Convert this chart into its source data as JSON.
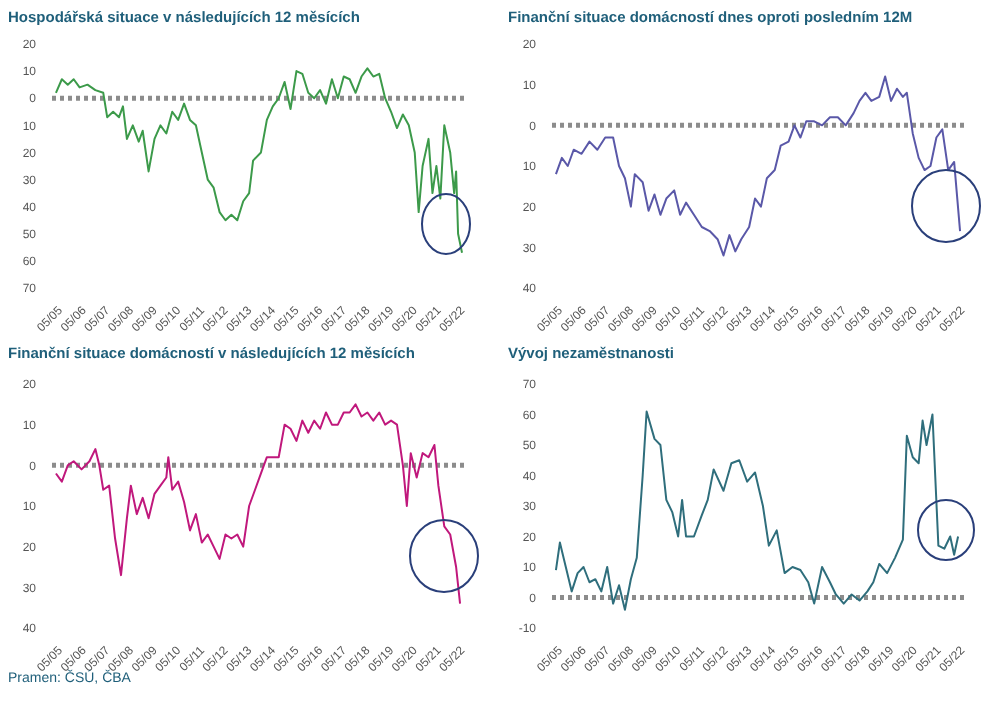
{
  "chart_data": [
    {
      "type": "line",
      "title": "Hospodářská situace v následujících 12 měsících",
      "color": "#3c9a4a",
      "grid": false,
      "legend": false,
      "marker": "none",
      "line_style": "solid",
      "x": [
        "2005-05",
        "2005-08",
        "2005-11",
        "2006-02",
        "2006-05",
        "2006-09",
        "2007-01",
        "2007-05",
        "2007-07",
        "2007-10",
        "2008-01",
        "2008-03",
        "2008-05",
        "2008-08",
        "2008-11",
        "2009-01",
        "2009-04",
        "2009-07",
        "2009-10",
        "2010-01",
        "2010-04",
        "2010-07",
        "2010-10",
        "2011-01",
        "2011-04",
        "2011-07",
        "2011-10",
        "2012-01",
        "2012-04",
        "2012-07",
        "2012-10",
        "2013-01",
        "2013-04",
        "2013-07",
        "2013-09",
        "2014-01",
        "2014-04",
        "2014-07",
        "2014-10",
        "2015-01",
        "2015-04",
        "2015-07",
        "2015-10",
        "2016-01",
        "2016-04",
        "2016-07",
        "2016-10",
        "2017-01",
        "2017-04",
        "2017-07",
        "2017-10",
        "2018-01",
        "2018-04",
        "2018-07",
        "2018-10",
        "2019-01",
        "2019-04",
        "2019-07",
        "2019-10",
        "2020-01",
        "2020-04",
        "2020-07",
        "2020-09",
        "2020-11",
        "2021-02",
        "2021-04",
        "2021-06",
        "2021-08",
        "2021-10",
        "2022-01",
        "2022-03",
        "2022-04",
        "2022-05",
        "2022-07"
      ],
      "values": [
        2,
        7,
        5,
        7,
        4,
        5,
        3,
        2,
        -7,
        -5,
        -7,
        -3,
        -15,
        -10,
        -16,
        -12,
        -27,
        -15,
        -10,
        -13,
        -5,
        -8,
        -2,
        -8,
        -10,
        -20,
        -30,
        -33,
        -42,
        -45,
        -43,
        -45,
        -38,
        -35,
        -23,
        -20,
        -8,
        -3,
        0,
        6,
        -4,
        10,
        9,
        2,
        0,
        3,
        -2,
        7,
        0,
        8,
        7,
        2,
        8,
        11,
        8,
        9,
        0,
        -5,
        -11,
        -6,
        -10,
        -20,
        -42,
        -25,
        -15,
        -35,
        -25,
        -37,
        -10,
        -20,
        -35,
        -27,
        -50,
        -57
      ],
      "xlim": [
        "2005-03",
        "2022-08"
      ],
      "xticks": [
        {
          "value": "2005-05",
          "label": "05/05"
        },
        {
          "value": "2006-05",
          "label": "05/06"
        },
        {
          "value": "2007-05",
          "label": "05/07"
        },
        {
          "value": "2008-05",
          "label": "05/08"
        },
        {
          "value": "2009-05",
          "label": "05/09"
        },
        {
          "value": "2010-05",
          "label": "05/10"
        },
        {
          "value": "2011-05",
          "label": "05/11"
        },
        {
          "value": "2012-05",
          "label": "05/12"
        },
        {
          "value": "2013-05",
          "label": "05/13"
        },
        {
          "value": "2014-05",
          "label": "05/14"
        },
        {
          "value": "2015-05",
          "label": "05/15"
        },
        {
          "value": "2016-05",
          "label": "05/16"
        },
        {
          "value": "2017-05",
          "label": "05/17"
        },
        {
          "value": "2018-05",
          "label": "05/18"
        },
        {
          "value": "2019-05",
          "label": "05/19"
        },
        {
          "value": "2020-05",
          "label": "05/20"
        },
        {
          "value": "2021-05",
          "label": "05/21"
        },
        {
          "value": "2022-05",
          "label": "05/22"
        }
      ],
      "ylim": [
        -70,
        20
      ],
      "yticks": [
        {
          "value": -70,
          "label": "70"
        },
        {
          "value": -60,
          "label": "60"
        },
        {
          "value": -50,
          "label": "50"
        },
        {
          "value": -40,
          "label": "40"
        },
        {
          "value": -30,
          "label": "30"
        },
        {
          "value": -20,
          "label": "20"
        },
        {
          "value": -10,
          "label": "10"
        },
        0,
        10,
        20
      ],
      "ref_lines": [
        {
          "axis": "y",
          "value": 0,
          "color": "#8c8c8c",
          "line_style": "dotted"
        }
      ]
    },
    {
      "type": "line",
      "title": "Finanční situace domácností dnes oproti posledním 12M",
      "color": "#5a58a8",
      "grid": false,
      "legend": false,
      "marker": "none",
      "line_style": "solid",
      "x": [
        "2005-05",
        "2005-08",
        "2005-11",
        "2006-02",
        "2006-06",
        "2006-10",
        "2007-02",
        "2007-06",
        "2007-10",
        "2008-01",
        "2008-04",
        "2008-07",
        "2008-09",
        "2009-01",
        "2009-04",
        "2009-07",
        "2009-10",
        "2010-01",
        "2010-05",
        "2010-08",
        "2010-11",
        "2011-03",
        "2011-07",
        "2011-11",
        "2012-03",
        "2012-06",
        "2012-09",
        "2012-12",
        "2013-03",
        "2013-07",
        "2013-10",
        "2014-01",
        "2014-04",
        "2014-08",
        "2014-11",
        "2015-03",
        "2015-06",
        "2015-09",
        "2015-12",
        "2016-04",
        "2016-08",
        "2016-12",
        "2017-04",
        "2017-08",
        "2017-12",
        "2018-03",
        "2018-06",
        "2018-09",
        "2019-01",
        "2019-04",
        "2019-07",
        "2019-10",
        "2020-01",
        "2020-03",
        "2020-06",
        "2020-09",
        "2020-12",
        "2021-03",
        "2021-06",
        "2021-09",
        "2021-12",
        "2022-03",
        "2022-06"
      ],
      "values": [
        -12,
        -8,
        -10,
        -6,
        -7,
        -4,
        -6,
        -3,
        -3,
        -10,
        -13,
        -20,
        -12,
        -14,
        -21,
        -17,
        -22,
        -18,
        -16,
        -22,
        -19,
        -22,
        -25,
        -26,
        -28,
        -32,
        -27,
        -31,
        -28,
        -25,
        -18,
        -20,
        -13,
        -11,
        -5,
        -4,
        0,
        -3,
        1,
        1,
        0,
        2,
        2,
        0,
        3,
        6,
        8,
        6,
        7,
        12,
        6,
        9,
        7,
        8,
        -2,
        -8,
        -11,
        -10,
        -3,
        -1,
        -11,
        -9,
        -26
      ],
      "xlim": [
        "2005-03",
        "2022-08"
      ],
      "xticks": [
        {
          "value": "2005-05",
          "label": "05/05"
        },
        {
          "value": "2006-05",
          "label": "05/06"
        },
        {
          "value": "2007-05",
          "label": "05/07"
        },
        {
          "value": "2008-05",
          "label": "05/08"
        },
        {
          "value": "2009-05",
          "label": "05/09"
        },
        {
          "value": "2010-05",
          "label": "05/10"
        },
        {
          "value": "2011-05",
          "label": "05/11"
        },
        {
          "value": "2012-05",
          "label": "05/12"
        },
        {
          "value": "2013-05",
          "label": "05/13"
        },
        {
          "value": "2014-05",
          "label": "05/14"
        },
        {
          "value": "2015-05",
          "label": "05/15"
        },
        {
          "value": "2016-05",
          "label": "05/16"
        },
        {
          "value": "2017-05",
          "label": "05/17"
        },
        {
          "value": "2018-05",
          "label": "05/18"
        },
        {
          "value": "2019-05",
          "label": "05/19"
        },
        {
          "value": "2020-05",
          "label": "05/20"
        },
        {
          "value": "2021-05",
          "label": "05/21"
        },
        {
          "value": "2022-05",
          "label": "05/22"
        }
      ],
      "ylim": [
        -40,
        20
      ],
      "yticks": [
        {
          "value": -40,
          "label": "40"
        },
        {
          "value": -30,
          "label": "30"
        },
        {
          "value": -20,
          "label": "20"
        },
        {
          "value": -10,
          "label": "10"
        },
        0,
        10,
        20
      ],
      "ref_lines": [
        {
          "axis": "y",
          "value": 0,
          "color": "#8c8c8c",
          "line_style": "dotted"
        }
      ]
    },
    {
      "type": "line",
      "title": "Finanční situace domácností v následujících 12 měsících",
      "color": "#c0187c",
      "grid": false,
      "legend": false,
      "marker": "none",
      "line_style": "solid",
      "x": [
        "2005-05",
        "2005-08",
        "2005-11",
        "2006-02",
        "2006-06",
        "2006-10",
        "2007-01",
        "2007-03",
        "2007-05",
        "2007-08",
        "2007-11",
        "2008-02",
        "2008-05",
        "2008-07",
        "2008-10",
        "2009-01",
        "2009-04",
        "2009-07",
        "2009-10",
        "2010-01",
        "2010-02",
        "2010-04",
        "2010-07",
        "2010-10",
        "2011-01",
        "2011-04",
        "2011-07",
        "2011-10",
        "2012-01",
        "2012-04",
        "2012-07",
        "2012-10",
        "2013-01",
        "2013-04",
        "2013-07",
        "2013-10",
        "2014-01",
        "2014-04",
        "2014-07",
        "2014-10",
        "2015-01",
        "2015-04",
        "2015-07",
        "2015-10",
        "2016-01",
        "2016-04",
        "2016-07",
        "2016-10",
        "2017-01",
        "2017-04",
        "2017-07",
        "2017-10",
        "2018-01",
        "2018-04",
        "2018-07",
        "2018-10",
        "2019-01",
        "2019-04",
        "2019-07",
        "2019-10",
        "2020-01",
        "2020-03",
        "2020-05",
        "2020-08",
        "2020-11",
        "2021-02",
        "2021-05",
        "2021-07",
        "2021-10",
        "2022-01",
        "2022-04",
        "2022-06"
      ],
      "values": [
        -2,
        -4,
        0,
        1,
        -1,
        1,
        4,
        0,
        -6,
        -5,
        -18,
        -27,
        -13,
        -5,
        -12,
        -8,
        -13,
        -7,
        -5,
        -3,
        2,
        -6,
        -4,
        -9,
        -16,
        -12,
        -19,
        -17,
        -20,
        -23,
        -17,
        -18,
        -17,
        -20,
        -10,
        -6,
        -2,
        2,
        2,
        2,
        10,
        9,
        6,
        11,
        8,
        11,
        9,
        13,
        10,
        10,
        13,
        13,
        15,
        12,
        13,
        11,
        13,
        10,
        11,
        10,
        0,
        -10,
        3,
        -3,
        3,
        2,
        5,
        -5,
        -15,
        -17,
        -25,
        -34
      ],
      "xlim": [
        "2005-03",
        "2022-08"
      ],
      "xticks": [
        {
          "value": "2005-05",
          "label": "05/05"
        },
        {
          "value": "2006-05",
          "label": "05/06"
        },
        {
          "value": "2007-05",
          "label": "05/07"
        },
        {
          "value": "2008-05",
          "label": "05/08"
        },
        {
          "value": "2009-05",
          "label": "05/09"
        },
        {
          "value": "2010-05",
          "label": "05/10"
        },
        {
          "value": "2011-05",
          "label": "05/11"
        },
        {
          "value": "2012-05",
          "label": "05/12"
        },
        {
          "value": "2013-05",
          "label": "05/13"
        },
        {
          "value": "2014-05",
          "label": "05/14"
        },
        {
          "value": "2015-05",
          "label": "05/15"
        },
        {
          "value": "2016-05",
          "label": "05/16"
        },
        {
          "value": "2017-05",
          "label": "05/17"
        },
        {
          "value": "2018-05",
          "label": "05/18"
        },
        {
          "value": "2019-05",
          "label": "05/19"
        },
        {
          "value": "2020-05",
          "label": "05/20"
        },
        {
          "value": "2021-05",
          "label": "05/21"
        },
        {
          "value": "2022-05",
          "label": "05/22"
        }
      ],
      "ylim": [
        -40,
        20
      ],
      "yticks": [
        {
          "value": -40,
          "label": "40"
        },
        {
          "value": -30,
          "label": "30"
        },
        {
          "value": -20,
          "label": "20"
        },
        {
          "value": -10,
          "label": "10"
        },
        0,
        10,
        20
      ],
      "ref_lines": [
        {
          "axis": "y",
          "value": 0,
          "color": "#8c8c8c",
          "line_style": "dotted"
        }
      ],
      "annotations": [
        "Pramen: ČSÚ, ČBA"
      ]
    },
    {
      "type": "line",
      "title": "Vývoj nezaměstnanosti",
      "color": "#2f6e7c",
      "grid": false,
      "legend": false,
      "marker": "none",
      "line_style": "solid",
      "x": [
        "2005-05",
        "2005-07",
        "2005-10",
        "2006-01",
        "2006-04",
        "2006-07",
        "2006-10",
        "2007-01",
        "2007-04",
        "2007-07",
        "2007-10",
        "2008-01",
        "2008-04",
        "2008-07",
        "2008-10",
        "2009-01",
        "2009-03",
        "2009-07",
        "2009-10",
        "2010-01",
        "2010-04",
        "2010-07",
        "2010-09",
        "2010-11",
        "2011-03",
        "2011-07",
        "2011-10",
        "2012-01",
        "2012-06",
        "2012-10",
        "2013-02",
        "2013-06",
        "2013-10",
        "2014-02",
        "2014-05",
        "2014-09",
        "2015-01",
        "2015-05",
        "2015-09",
        "2016-01",
        "2016-04",
        "2016-08",
        "2016-12",
        "2017-03",
        "2017-07",
        "2017-11",
        "2018-03",
        "2018-07",
        "2018-10",
        "2019-01",
        "2019-05",
        "2019-09",
        "2020-01",
        "2020-03",
        "2020-06",
        "2020-09",
        "2020-11",
        "2021-01",
        "2021-04",
        "2021-07",
        "2021-10",
        "2022-01",
        "2022-03",
        "2022-05"
      ],
      "values": [
        9,
        18,
        10,
        2,
        8,
        10,
        5,
        6,
        2,
        10,
        -2,
        4,
        -4,
        6,
        13,
        40,
        61,
        52,
        50,
        32,
        28,
        20,
        32,
        20,
        20,
        27,
        32,
        42,
        35,
        44,
        45,
        38,
        41,
        30,
        17,
        22,
        8,
        10,
        9,
        5,
        -2,
        10,
        5,
        1,
        -2,
        1,
        -1,
        2,
        5,
        11,
        8,
        13,
        19,
        53,
        46,
        44,
        58,
        50,
        60,
        17,
        16,
        20,
        14,
        20
      ],
      "xlim": [
        "2005-03",
        "2022-08"
      ],
      "xticks": [
        {
          "value": "2005-05",
          "label": "05/05"
        },
        {
          "value": "2006-05",
          "label": "05/06"
        },
        {
          "value": "2007-05",
          "label": "05/07"
        },
        {
          "value": "2008-05",
          "label": "05/08"
        },
        {
          "value": "2009-05",
          "label": "05/09"
        },
        {
          "value": "2010-05",
          "label": "05/10"
        },
        {
          "value": "2011-05",
          "label": "05/11"
        },
        {
          "value": "2012-05",
          "label": "05/12"
        },
        {
          "value": "2013-05",
          "label": "05/13"
        },
        {
          "value": "2014-05",
          "label": "05/14"
        },
        {
          "value": "2015-05",
          "label": "05/15"
        },
        {
          "value": "2016-05",
          "label": "05/16"
        },
        {
          "value": "2017-05",
          "label": "05/17"
        },
        {
          "value": "2018-05",
          "label": "05/18"
        },
        {
          "value": "2019-05",
          "label": "05/19"
        },
        {
          "value": "2020-05",
          "label": "05/20"
        },
        {
          "value": "2021-05",
          "label": "05/21"
        },
        {
          "value": "2022-05",
          "label": "05/22"
        }
      ],
      "ylim": [
        -10,
        70
      ],
      "yticks": [
        -10,
        0,
        10,
        20,
        30,
        40,
        50,
        60,
        70
      ],
      "ref_lines": [
        {
          "axis": "y",
          "value": 0,
          "color": "#8c8c8c",
          "line_style": "dotted"
        }
      ]
    }
  ]
}
